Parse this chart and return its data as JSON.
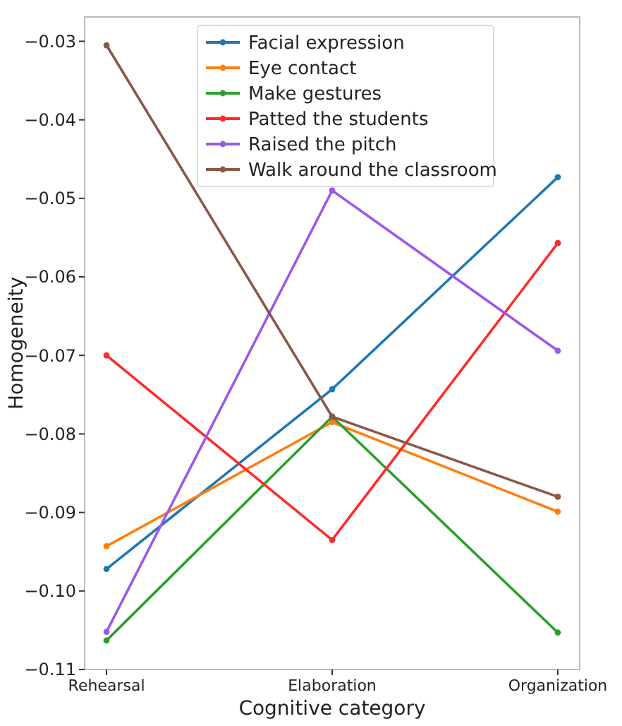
{
  "chart_data": {
    "type": "line",
    "xlabel": "Cognitive category",
    "ylabel": "Homogeneity",
    "categories": [
      "Rehearsal",
      "Elaboration",
      "Organization"
    ],
    "series": [
      {
        "name": "Facial expression",
        "color": "#1f77b4",
        "values": [
          -0.0972,
          -0.0743,
          -0.0473
        ]
      },
      {
        "name": "Eye contact",
        "color": "#ff7f0e",
        "values": [
          -0.0943,
          -0.0785,
          -0.0899
        ]
      },
      {
        "name": "Make gestures",
        "color": "#2ca02c",
        "values": [
          -0.1063,
          -0.0778,
          -0.1053
        ]
      },
      {
        "name": "Patted the students",
        "color": "#ff2a2a",
        "values": [
          -0.07,
          -0.0935,
          -0.0557
        ]
      },
      {
        "name": "Raised the pitch",
        "color": "#9b59e8",
        "values": [
          -0.1052,
          -0.049,
          -0.0694
        ]
      },
      {
        "name": "Walk around the classroom",
        "color": "#8c564b",
        "values": [
          -0.0305,
          -0.0778,
          -0.088
        ]
      }
    ],
    "ylim": [
      -0.11,
      -0.0269
    ],
    "yticks": [
      {
        "value": -0.11,
        "label": "−0.11"
      },
      {
        "value": -0.1,
        "label": "−0.10"
      },
      {
        "value": -0.09,
        "label": "−0.09"
      },
      {
        "value": -0.08,
        "label": "−0.08"
      },
      {
        "value": -0.07,
        "label": "−0.07"
      },
      {
        "value": -0.06,
        "label": "−0.06"
      },
      {
        "value": -0.05,
        "label": "−0.05"
      },
      {
        "value": -0.04,
        "label": "−0.04"
      },
      {
        "value": -0.03,
        "label": "−0.03"
      }
    ],
    "grid": false,
    "legend": "top",
    "marker": "circle",
    "line_style": "solid"
  }
}
